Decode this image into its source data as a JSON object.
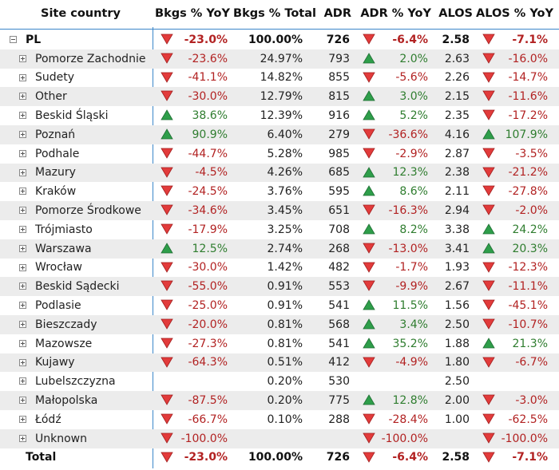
{
  "columns": {
    "site": "Site country",
    "bkgs_yoy": "Bkgs % YoY",
    "bkgs_total": "Bkgs % Total",
    "adr": "ADR",
    "adr_yoy": "ADR % YoY",
    "alos": "ALOS",
    "alos_yoy": "ALOS % YoY"
  },
  "colors": {
    "up": "#2e9e4a",
    "down": "#e23b3b",
    "divider": "#3a86c9"
  },
  "parent": {
    "name": "PL",
    "bkgs_yoy": "-23.0%",
    "bkgs_dir": "down",
    "bkgs_total": "100.00%",
    "adr": "726",
    "adr_yoy": "-6.4%",
    "adr_dir": "down",
    "alos": "2.58",
    "alos_yoy": "-7.1%",
    "alos_dir": "down"
  },
  "rows": [
    {
      "name": "Pomorze Zachodnie",
      "bkgs_yoy": "-23.6%",
      "bkgs_dir": "down",
      "bkgs_total": "24.97%",
      "adr": "793",
      "adr_yoy": "2.0%",
      "adr_dir": "up",
      "alos": "2.63",
      "alos_yoy": "-16.0%",
      "alos_dir": "down"
    },
    {
      "name": "Sudety",
      "bkgs_yoy": "-41.1%",
      "bkgs_dir": "down",
      "bkgs_total": "14.82%",
      "adr": "855",
      "adr_yoy": "-5.6%",
      "adr_dir": "down",
      "alos": "2.26",
      "alos_yoy": "-14.7%",
      "alos_dir": "down"
    },
    {
      "name": "Other",
      "bkgs_yoy": "-30.0%",
      "bkgs_dir": "down",
      "bkgs_total": "12.79%",
      "adr": "815",
      "adr_yoy": "3.0%",
      "adr_dir": "up",
      "alos": "2.15",
      "alos_yoy": "-11.6%",
      "alos_dir": "down"
    },
    {
      "name": "Beskid Śląski",
      "bkgs_yoy": "38.6%",
      "bkgs_dir": "up",
      "bkgs_total": "12.39%",
      "adr": "916",
      "adr_yoy": "5.2%",
      "adr_dir": "up",
      "alos": "2.35",
      "alos_yoy": "-17.2%",
      "alos_dir": "down"
    },
    {
      "name": "Poznań",
      "bkgs_yoy": "90.9%",
      "bkgs_dir": "up",
      "bkgs_total": "6.40%",
      "adr": "279",
      "adr_yoy": "-36.6%",
      "adr_dir": "down",
      "alos": "4.16",
      "alos_yoy": "107.9%",
      "alos_dir": "up"
    },
    {
      "name": "Podhale",
      "bkgs_yoy": "-44.7%",
      "bkgs_dir": "down",
      "bkgs_total": "5.28%",
      "adr": "985",
      "adr_yoy": "-2.9%",
      "adr_dir": "down",
      "alos": "2.87",
      "alos_yoy": "-3.5%",
      "alos_dir": "down"
    },
    {
      "name": "Mazury",
      "bkgs_yoy": "-4.5%",
      "bkgs_dir": "down",
      "bkgs_total": "4.26%",
      "adr": "685",
      "adr_yoy": "12.3%",
      "adr_dir": "up",
      "alos": "2.38",
      "alos_yoy": "-21.2%",
      "alos_dir": "down"
    },
    {
      "name": "Kraków",
      "bkgs_yoy": "-24.5%",
      "bkgs_dir": "down",
      "bkgs_total": "3.76%",
      "adr": "595",
      "adr_yoy": "8.6%",
      "adr_dir": "up",
      "alos": "2.11",
      "alos_yoy": "-27.8%",
      "alos_dir": "down"
    },
    {
      "name": "Pomorze Środkowe",
      "bkgs_yoy": "-34.6%",
      "bkgs_dir": "down",
      "bkgs_total": "3.45%",
      "adr": "651",
      "adr_yoy": "-16.3%",
      "adr_dir": "down",
      "alos": "2.94",
      "alos_yoy": "-2.0%",
      "alos_dir": "down"
    },
    {
      "name": "Trójmiasto",
      "bkgs_yoy": "-17.9%",
      "bkgs_dir": "down",
      "bkgs_total": "3.25%",
      "adr": "708",
      "adr_yoy": "8.2%",
      "adr_dir": "up",
      "alos": "3.38",
      "alos_yoy": "24.2%",
      "alos_dir": "up"
    },
    {
      "name": "Warszawa",
      "bkgs_yoy": "12.5%",
      "bkgs_dir": "up",
      "bkgs_total": "2.74%",
      "adr": "268",
      "adr_yoy": "-13.0%",
      "adr_dir": "down",
      "alos": "3.41",
      "alos_yoy": "20.3%",
      "alos_dir": "up"
    },
    {
      "name": "Wrocław",
      "bkgs_yoy": "-30.0%",
      "bkgs_dir": "down",
      "bkgs_total": "1.42%",
      "adr": "482",
      "adr_yoy": "-1.7%",
      "adr_dir": "down",
      "alos": "1.93",
      "alos_yoy": "-12.3%",
      "alos_dir": "down"
    },
    {
      "name": "Beskid Sądecki",
      "bkgs_yoy": "-55.0%",
      "bkgs_dir": "down",
      "bkgs_total": "0.91%",
      "adr": "553",
      "adr_yoy": "-9.9%",
      "adr_dir": "down",
      "alos": "2.67",
      "alos_yoy": "-11.1%",
      "alos_dir": "down"
    },
    {
      "name": "Podlasie",
      "bkgs_yoy": "-25.0%",
      "bkgs_dir": "down",
      "bkgs_total": "0.91%",
      "adr": "541",
      "adr_yoy": "11.5%",
      "adr_dir": "up",
      "alos": "1.56",
      "alos_yoy": "-45.1%",
      "alos_dir": "down"
    },
    {
      "name": "Bieszczady",
      "bkgs_yoy": "-20.0%",
      "bkgs_dir": "down",
      "bkgs_total": "0.81%",
      "adr": "568",
      "adr_yoy": "3.4%",
      "adr_dir": "up",
      "alos": "2.50",
      "alos_yoy": "-10.7%",
      "alos_dir": "down"
    },
    {
      "name": "Mazowsze",
      "bkgs_yoy": "-27.3%",
      "bkgs_dir": "down",
      "bkgs_total": "0.81%",
      "adr": "541",
      "adr_yoy": "35.2%",
      "adr_dir": "up",
      "alos": "1.88",
      "alos_yoy": "21.3%",
      "alos_dir": "up"
    },
    {
      "name": "Kujawy",
      "bkgs_yoy": "-64.3%",
      "bkgs_dir": "down",
      "bkgs_total": "0.51%",
      "adr": "412",
      "adr_yoy": "-4.9%",
      "adr_dir": "down",
      "alos": "1.80",
      "alos_yoy": "-6.7%",
      "alos_dir": "down"
    },
    {
      "name": "Lubelszczyzna",
      "bkgs_yoy": "",
      "bkgs_dir": "",
      "bkgs_total": "0.20%",
      "adr": "530",
      "adr_yoy": "",
      "adr_dir": "",
      "alos": "2.50",
      "alos_yoy": "",
      "alos_dir": ""
    },
    {
      "name": "Małopolska",
      "bkgs_yoy": "-87.5%",
      "bkgs_dir": "down",
      "bkgs_total": "0.20%",
      "adr": "775",
      "adr_yoy": "12.8%",
      "adr_dir": "up",
      "alos": "2.00",
      "alos_yoy": "-3.0%",
      "alos_dir": "down"
    },
    {
      "name": "Łódź",
      "bkgs_yoy": "-66.7%",
      "bkgs_dir": "down",
      "bkgs_total": "0.10%",
      "adr": "288",
      "adr_yoy": "-28.4%",
      "adr_dir": "down",
      "alos": "1.00",
      "alos_yoy": "-62.5%",
      "alos_dir": "down"
    },
    {
      "name": "Unknown",
      "bkgs_yoy": "-100.0%",
      "bkgs_dir": "down",
      "bkgs_total": "",
      "adr": "",
      "adr_yoy": "-100.0%",
      "adr_dir": "down",
      "alos": "",
      "alos_yoy": "-100.0%",
      "alos_dir": "down"
    }
  ],
  "total": {
    "name": "Total",
    "bkgs_yoy": "-23.0%",
    "bkgs_dir": "down",
    "bkgs_total": "100.00%",
    "adr": "726",
    "adr_yoy": "-6.4%",
    "adr_dir": "down",
    "alos": "2.58",
    "alos_yoy": "-7.1%",
    "alos_dir": "down"
  }
}
